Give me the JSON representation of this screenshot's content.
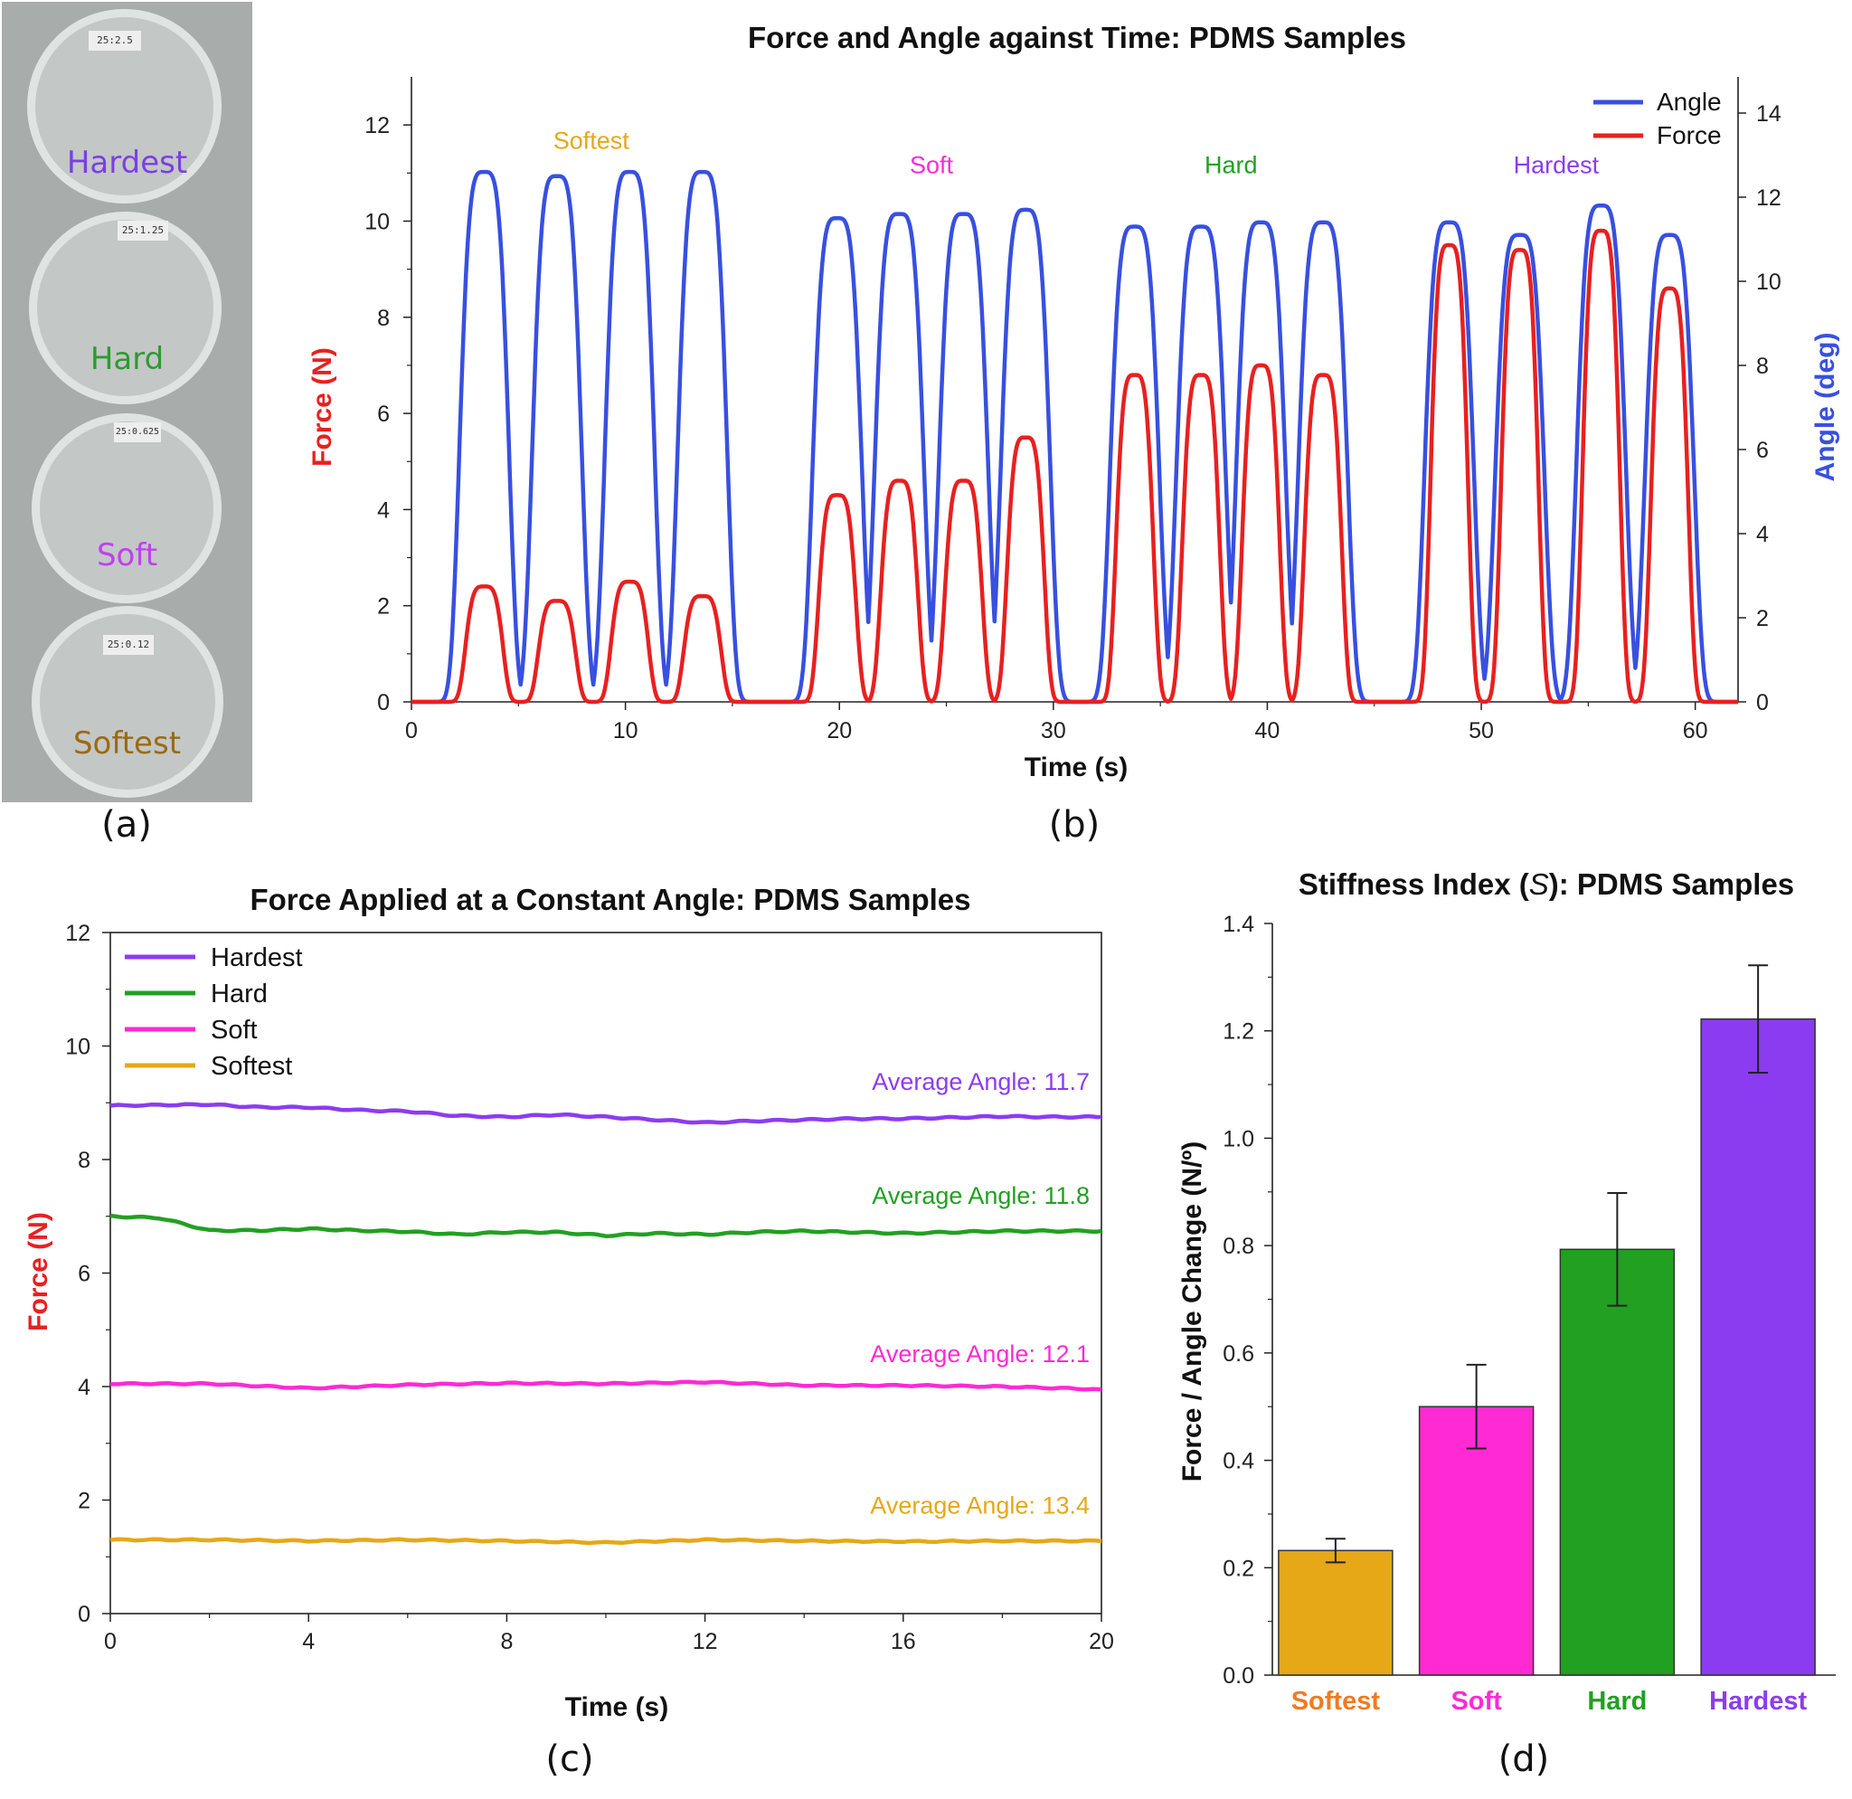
{
  "photo": {
    "labels": [
      {
        "text": "Hardest",
        "color": "#7b3fe4",
        "tag": "25:2.5"
      },
      {
        "text": "Hard",
        "color": "#2e9a2e",
        "tag": "25:1.25"
      },
      {
        "text": "Soft",
        "color": "#c040f0",
        "tag": "25:0.625"
      },
      {
        "text": "Softest",
        "color": "#9c6a10",
        "tag": "25:0.12"
      }
    ]
  },
  "panel_labels": {
    "a": "(a)",
    "b": "(b)",
    "c": "(c)",
    "d": "(d)"
  },
  "colors": {
    "angle": "#3850e0",
    "force": "#e82020",
    "softest": "#e6a817",
    "soft": "#ff2ad4",
    "hard": "#22a022",
    "hardest": "#8c3cf0",
    "softest_label": "#f07a20"
  },
  "chart_data": [
    {
      "id": "b",
      "type": "line",
      "title": "Force and Angle against Time: PDMS Samples",
      "xlabel": "Time (s)",
      "ylabel": "Force (N)",
      "y2label": "Angle (deg)",
      "xlim": [
        0,
        62
      ],
      "ylim": [
        0,
        13
      ],
      "y2lim": [
        0,
        14.86
      ],
      "xticks": [
        0,
        10,
        20,
        30,
        40,
        50,
        60
      ],
      "yticks": [
        0,
        2,
        4,
        6,
        8,
        10,
        12
      ],
      "y2ticks": [
        0,
        2,
        4,
        6,
        8,
        10,
        12,
        14
      ],
      "legend": [
        "Angle",
        "Force"
      ],
      "legend_position": "top-right",
      "group_labels": [
        {
          "text": "Softest",
          "x": 8.4,
          "y": 11.5,
          "color": "#e6a817"
        },
        {
          "text": "Soft",
          "x": 24.3,
          "y": 11.0,
          "color": "#ff2ad4"
        },
        {
          "text": "Hard",
          "x": 38.3,
          "y": 11.0,
          "color": "#22a022"
        },
        {
          "text": "Hardest",
          "x": 53.5,
          "y": 11.0,
          "color": "#8c3cf0"
        }
      ],
      "series": [
        {
          "name": "Angle",
          "axis": "right",
          "peaks": [
            {
              "x": 3.4,
              "y": 12.6
            },
            {
              "x": 6.8,
              "y": 12.5
            },
            {
              "x": 10.2,
              "y": 12.6
            },
            {
              "x": 13.6,
              "y": 12.6
            },
            {
              "x": 19.9,
              "y": 11.5
            },
            {
              "x": 22.8,
              "y": 11.6
            },
            {
              "x": 25.8,
              "y": 11.6
            },
            {
              "x": 28.7,
              "y": 11.7
            },
            {
              "x": 33.8,
              "y": 11.3
            },
            {
              "x": 36.9,
              "y": 11.3
            },
            {
              "x": 39.7,
              "y": 11.4
            },
            {
              "x": 42.6,
              "y": 11.4
            },
            {
              "x": 48.5,
              "y": 11.4
            },
            {
              "x": 51.8,
              "y": 11.1
            },
            {
              "x": 55.6,
              "y": 11.8
            },
            {
              "x": 58.8,
              "y": 11.1
            }
          ]
        },
        {
          "name": "Force",
          "axis": "left",
          "peaks": [
            {
              "x": 3.4,
              "y": 2.4
            },
            {
              "x": 6.8,
              "y": 2.1
            },
            {
              "x": 10.2,
              "y": 2.5
            },
            {
              "x": 13.6,
              "y": 2.2
            },
            {
              "x": 19.9,
              "y": 4.3
            },
            {
              "x": 22.8,
              "y": 4.6
            },
            {
              "x": 25.8,
              "y": 4.6
            },
            {
              "x": 28.7,
              "y": 5.5
            },
            {
              "x": 33.8,
              "y": 6.8
            },
            {
              "x": 36.9,
              "y": 6.8
            },
            {
              "x": 39.7,
              "y": 7.0
            },
            {
              "x": 42.6,
              "y": 6.8
            },
            {
              "x": 48.5,
              "y": 9.5
            },
            {
              "x": 51.8,
              "y": 9.4
            },
            {
              "x": 55.6,
              "y": 9.8
            },
            {
              "x": 58.8,
              "y": 8.6
            }
          ]
        }
      ]
    },
    {
      "id": "c",
      "type": "line",
      "title": "Force Applied at a Constant Angle: PDMS Samples",
      "xlabel": "Time (s)",
      "ylabel": "Force (N)",
      "xlim": [
        0,
        20
      ],
      "ylim": [
        0,
        12
      ],
      "xticks": [
        0,
        4,
        8,
        12,
        16,
        20
      ],
      "yticks": [
        0,
        2,
        4,
        6,
        8,
        10,
        12
      ],
      "legend_position": "top-left",
      "series": [
        {
          "name": "Hardest",
          "color": "#8c3cf0",
          "annotation": "Average Angle: 11.7",
          "x": [
            0,
            2,
            3,
            4,
            5,
            6,
            7,
            8,
            9,
            10,
            11,
            12,
            13,
            14,
            15,
            16,
            17,
            18,
            19,
            20
          ],
          "y": [
            8.95,
            8.97,
            8.92,
            8.92,
            8.87,
            8.85,
            8.77,
            8.75,
            8.79,
            8.75,
            8.7,
            8.65,
            8.68,
            8.7,
            8.72,
            8.72,
            8.74,
            8.76,
            8.75,
            8.75
          ]
        },
        {
          "name": "Hard",
          "color": "#22a022",
          "annotation": "Average Angle: 11.8",
          "x": [
            0,
            1,
            2,
            3,
            4,
            5,
            6,
            7,
            8,
            9,
            10,
            11,
            12,
            13,
            14,
            15,
            16,
            17,
            18,
            19,
            20
          ],
          "y": [
            7.0,
            6.97,
            6.75,
            6.75,
            6.78,
            6.75,
            6.73,
            6.68,
            6.72,
            6.72,
            6.66,
            6.7,
            6.68,
            6.72,
            6.74,
            6.72,
            6.7,
            6.72,
            6.74,
            6.74,
            6.74
          ]
        },
        {
          "name": "Soft",
          "color": "#ff2ad4",
          "annotation": "Average Angle: 12.1",
          "x": [
            0,
            2,
            4,
            6,
            8,
            10,
            12,
            14,
            16,
            18,
            20
          ],
          "y": [
            4.05,
            4.05,
            3.97,
            4.03,
            4.06,
            4.05,
            4.08,
            4.02,
            4.02,
            4.0,
            3.95
          ]
        },
        {
          "name": "Softest",
          "color": "#e6a817",
          "annotation": "Average Angle: 13.4",
          "x": [
            0,
            2,
            4,
            6,
            8,
            10,
            12,
            14,
            16,
            18,
            20
          ],
          "y": [
            1.3,
            1.3,
            1.28,
            1.3,
            1.28,
            1.25,
            1.3,
            1.28,
            1.27,
            1.28,
            1.28
          ]
        }
      ],
      "legend": [
        "Hardest",
        "Hard",
        "Soft",
        "Softest"
      ]
    },
    {
      "id": "d",
      "type": "bar",
      "title": "Stiffness Index (S): PDMS Samples",
      "title_parts": [
        "Stiffness Index (",
        "S",
        "): PDMS Samples"
      ],
      "ylabel": "Force / Angle Change (N/º)",
      "ylim": [
        0,
        1.4
      ],
      "yticks": [
        "0.0",
        "0.2",
        "0.4",
        "0.6",
        "0.8",
        "1.0",
        "1.2",
        "1.4"
      ],
      "categories": [
        "Softest",
        "Soft",
        "Hard",
        "Hardest"
      ],
      "values": [
        0.232,
        0.5,
        0.793,
        1.222
      ],
      "errors": [
        0.022,
        0.078,
        0.105,
        0.1
      ],
      "colors": [
        "#e6a817",
        "#ff2ad4",
        "#22a022",
        "#8c3cf0"
      ],
      "label_colors": [
        "#f07a20",
        "#ff2ad4",
        "#22a022",
        "#8c3cf0"
      ]
    }
  ]
}
